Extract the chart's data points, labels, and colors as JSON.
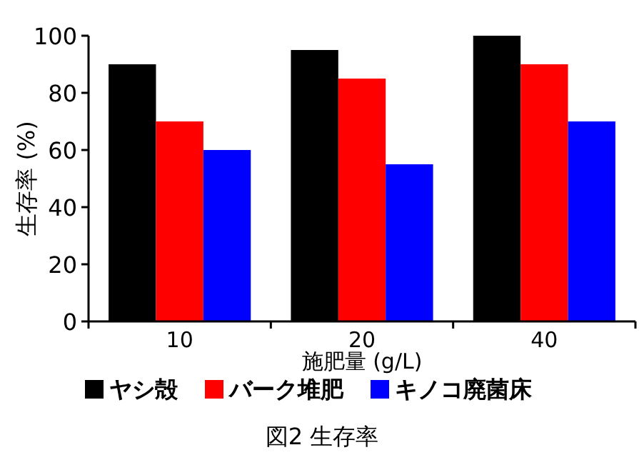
{
  "chart_data": {
    "type": "bar",
    "title": "図2 生存率",
    "xlabel": "施肥量 (g/L)",
    "ylabel": "生存率 (%)",
    "categories": [
      "10",
      "20",
      "40"
    ],
    "series": [
      {
        "name": "ヤシ殻",
        "color": "#000000",
        "values": [
          90,
          95,
          100
        ]
      },
      {
        "name": "バーク堆肥",
        "color": "#ff0000",
        "values": [
          70,
          85,
          90
        ]
      },
      {
        "name": "キノコ廃菌床",
        "color": "#0000ff",
        "values": [
          60,
          55,
          70
        ]
      }
    ],
    "ylim": [
      0,
      100
    ],
    "yticks": [
      0,
      20,
      40,
      60,
      80,
      100
    ],
    "legend": "bottom",
    "grid": false
  }
}
